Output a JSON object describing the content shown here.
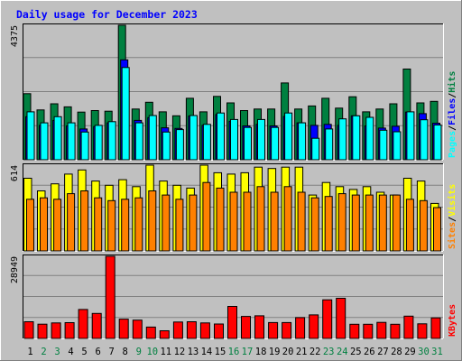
{
  "chart_data": {
    "type": "bar",
    "title": "Daily usage for December 2023",
    "categories": [
      "1",
      "2",
      "3",
      "4",
      "5",
      "6",
      "7",
      "8",
      "9",
      "10",
      "11",
      "12",
      "13",
      "14",
      "15",
      "16",
      "17",
      "18",
      "19",
      "20",
      "21",
      "22",
      "23",
      "24",
      "25",
      "26",
      "27",
      "28",
      "29",
      "30",
      "31"
    ],
    "weekend_days": [
      "2",
      "3",
      "9",
      "10",
      "16",
      "17",
      "23",
      "24",
      "30",
      "31"
    ],
    "colors": {
      "hits": "#008040",
      "files": "#0000ff",
      "pages": "#00ffff",
      "visits": "#ffff00",
      "sites": "#ff8000",
      "kbytes": "#ff0000",
      "title": "#0000ff",
      "weekday_label": "#000000",
      "weekend_label": "#008040",
      "background": "#c0c0c0"
    },
    "panels": [
      {
        "id": "hits-files-pages",
        "max_label": "4375",
        "ylim": [
          0,
          4375
        ],
        "legend": [
          "Pages",
          "/",
          "Files",
          "/",
          "Hits"
        ],
        "series": [
          {
            "name": "Hits",
            "key": "hits",
            "values": [
              2150,
              1620,
              1820,
              1720,
              1550,
              1600,
              1580,
              4375,
              1650,
              1870,
              1560,
              1430,
              2000,
              1560,
              2060,
              1850,
              1600,
              1650,
              1650,
              2500,
              1650,
              1750,
              2000,
              1680,
              2050,
              1560,
              1650,
              1820,
              2950,
              1850,
              1900
            ]
          },
          {
            "name": "Files",
            "key": "files",
            "values": [
              1400,
              1120,
              1280,
              1100,
              1000,
              1080,
              1200,
              3250,
              1280,
              1370,
              1040,
              1020,
              1420,
              1120,
              1470,
              1250,
              1100,
              1150,
              1100,
              1410,
              1200,
              1120,
              1150,
              1120,
              1430,
              1100,
              1030,
              1090,
              1550,
              1500,
              1190
            ]
          },
          {
            "name": "Pages",
            "key": "pages",
            "values": [
              1560,
              1200,
              1400,
              1200,
              900,
              1120,
              1240,
              3000,
              1200,
              1440,
              900,
              980,
              1440,
              1150,
              1520,
              1310,
              1050,
              1310,
              1050,
              1520,
              1200,
              700,
              1000,
              1330,
              1430,
              1380,
              960,
              910,
              1560,
              1300,
              1130
            ]
          }
        ]
      },
      {
        "id": "visits-sites",
        "max_label": "614",
        "ylim": [
          0,
          614
        ],
        "legend": [
          "Sites",
          "/",
          "Visits"
        ],
        "series": [
          {
            "name": "Visits",
            "key": "visits",
            "values": [
              520,
              430,
              480,
              550,
              580,
              500,
              470,
              510,
              460,
              614,
              500,
              470,
              450,
              614,
              560,
              550,
              560,
              600,
              590,
              600,
              600,
              400,
              490,
              460,
              440,
              460,
              420,
              400,
              520,
              500,
              340
            ]
          },
          {
            "name": "Sites",
            "key": "sites",
            "values": [
              370,
              380,
              370,
              410,
              430,
              380,
              360,
              370,
              380,
              430,
              400,
              370,
              400,
              490,
              450,
              420,
              420,
              460,
              420,
              460,
              420,
              380,
              390,
              410,
              400,
              400,
              400,
              400,
              370,
              360,
              310
            ]
          }
        ]
      },
      {
        "id": "kbytes",
        "max_label": "28949",
        "ylim": [
          0,
          28949
        ],
        "legend": [
          "KBytes"
        ],
        "series": [
          {
            "name": "KBytes",
            "key": "kbytes",
            "values": [
              5900,
              5030,
              5460,
              5560,
              10200,
              8800,
              28949,
              6800,
              6450,
              4000,
              2700,
              5800,
              5900,
              5460,
              5100,
              11300,
              7750,
              8000,
              5600,
              5600,
              7350,
              8300,
              13600,
              14150,
              5000,
              5000,
              5650,
              5000,
              7850,
              5150,
              7260
            ]
          }
        ]
      }
    ]
  }
}
